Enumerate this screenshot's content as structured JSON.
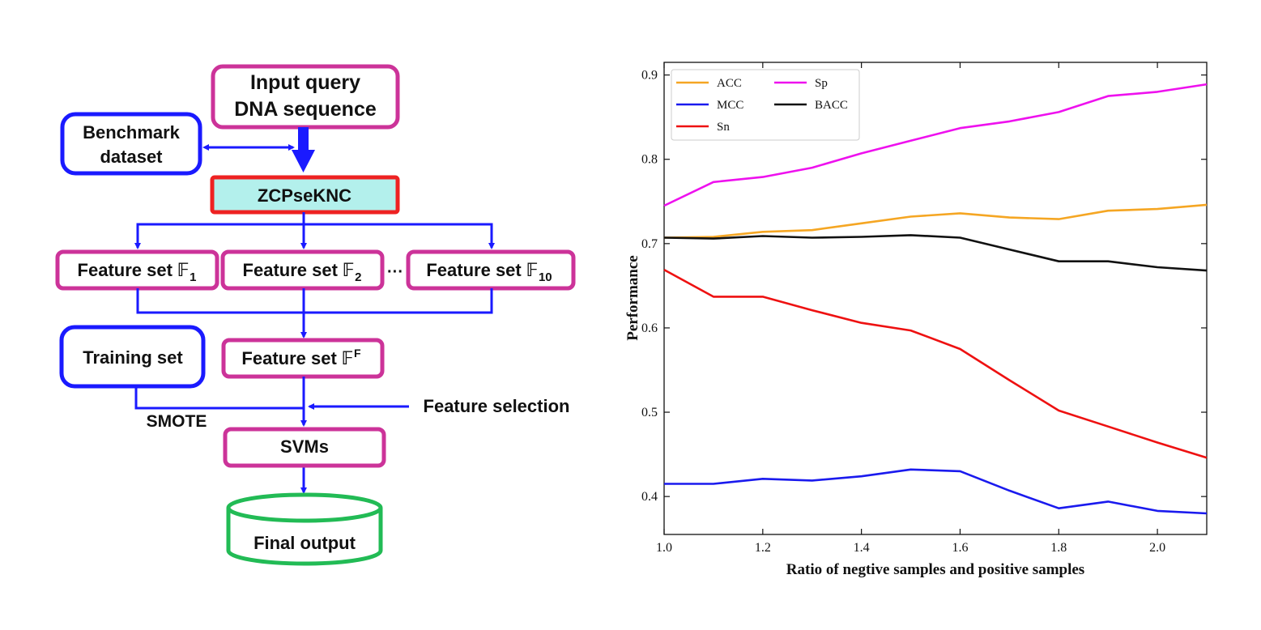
{
  "flowchart": {
    "input_line1": "Input query",
    "input_line2": "DNA sequence",
    "benchmark_line1": "Benchmark",
    "benchmark_line2": "dataset",
    "zcpseknc": "ZCPseKNC",
    "feature_set_1": "Feature set 𝔽",
    "feature_set_1_sub": "1",
    "feature_set_2": "Feature set 𝔽",
    "feature_set_2_sub": "2",
    "ellipsis": "···",
    "feature_set_10": "Feature set 𝔽",
    "feature_set_10_sub": "10",
    "training_set": "Training set",
    "feature_set_f": "Feature set 𝔽",
    "feature_set_f_sup": "F",
    "smote": "SMOTE",
    "feature_selection": "Feature selection",
    "svms": "SVMs",
    "final_output": "Final output",
    "colors": {
      "arrow": "#1a1aff",
      "magenta": "#cc3399",
      "red": "#ee2222",
      "cyan_fill": "#b3f0ec",
      "green": "#22bb55",
      "blue_box": "#1a1aff"
    }
  },
  "chart_data": {
    "type": "line",
    "title": "",
    "xlabel": "Ratio of negtive samples and positive samples",
    "ylabel": "Performance",
    "xlim": [
      1.0,
      2.1
    ],
    "ylim": [
      0.355,
      0.915
    ],
    "xticks": [
      1.0,
      1.2,
      1.4,
      1.6,
      1.8,
      2.0
    ],
    "xtick_labels": [
      "1.0",
      "1.2",
      "1.4",
      "1.6",
      "1.8",
      "2.0"
    ],
    "yticks": [
      0.4,
      0.5,
      0.6,
      0.7,
      0.8,
      0.9
    ],
    "ytick_labels": [
      "0.4",
      "0.5",
      "0.6",
      "0.7",
      "0.8",
      "0.9"
    ],
    "legend_position": "top-left",
    "x": [
      1.0,
      1.1,
      1.2,
      1.3,
      1.4,
      1.5,
      1.6,
      1.7,
      1.8,
      1.9,
      2.0,
      2.1
    ],
    "series": [
      {
        "name": "ACC",
        "color": "#f5a623",
        "values": [
          0.707,
          0.708,
          0.714,
          0.716,
          0.724,
          0.732,
          0.736,
          0.731,
          0.729,
          0.739,
          0.741,
          0.746
        ]
      },
      {
        "name": "MCC",
        "color": "#1a1aee",
        "values": [
          0.415,
          0.415,
          0.421,
          0.419,
          0.424,
          0.432,
          0.43,
          0.407,
          0.386,
          0.394,
          0.383,
          0.38
        ]
      },
      {
        "name": "Sn",
        "color": "#ee1111",
        "values": [
          0.669,
          0.637,
          0.637,
          0.621,
          0.606,
          0.597,
          0.575,
          0.538,
          0.502,
          0.483,
          0.464,
          0.446
        ]
      },
      {
        "name": "Sp",
        "color": "#ee11ee",
        "values": [
          0.745,
          0.773,
          0.779,
          0.79,
          0.807,
          0.822,
          0.837,
          0.845,
          0.856,
          0.875,
          0.88,
          0.889
        ]
      },
      {
        "name": "BACC",
        "color": "#111111",
        "values": [
          0.707,
          0.706,
          0.709,
          0.707,
          0.708,
          0.71,
          0.707,
          0.693,
          0.679,
          0.679,
          0.672,
          0.668
        ]
      }
    ]
  }
}
